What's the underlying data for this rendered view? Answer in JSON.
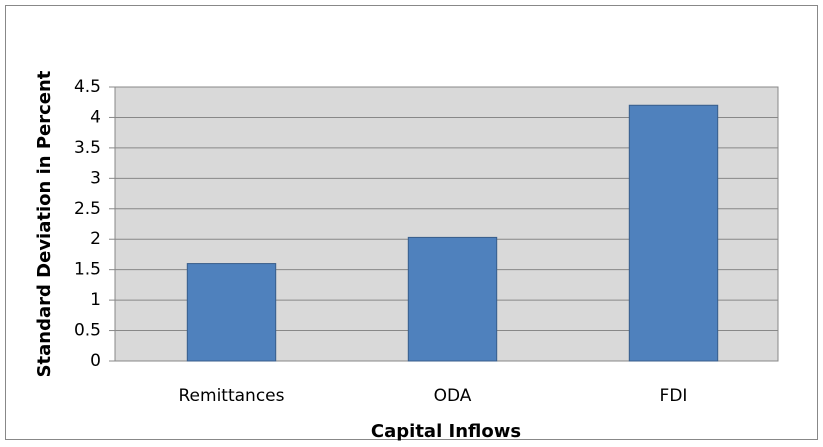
{
  "chart_data": {
    "type": "bar",
    "categories": [
      "Remittances",
      "ODA",
      "FDI"
    ],
    "values": [
      1.6,
      2.03,
      4.2
    ],
    "color": "#4f81bd",
    "x_label": "Capital Inflows",
    "y_label": "Standard Deviation in Percent",
    "ylim": [
      0,
      4.5
    ],
    "yticks": [
      0,
      0.5,
      1,
      1.5,
      2,
      2.5,
      3,
      3.5,
      4,
      4.5
    ],
    "grid": true
  }
}
